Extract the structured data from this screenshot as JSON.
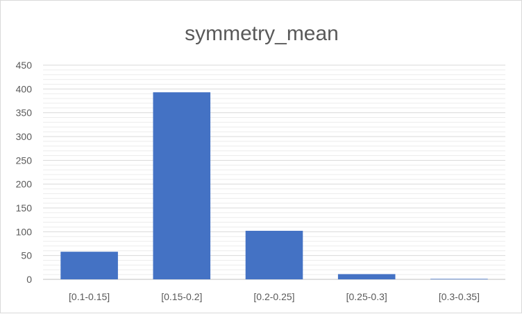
{
  "chart_data": {
    "type": "bar",
    "title": "symmetry_mean",
    "xlabel": "",
    "ylabel": "",
    "categories": [
      "[0.1-0.15]",
      "[0.15-0.2]",
      "[0.2-0.25]",
      "[0.25-0.3]",
      "[0.3-0.35]"
    ],
    "values": [
      58,
      393,
      102,
      11,
      1
    ],
    "ylim": [
      0,
      450
    ],
    "yticks": [
      0,
      50,
      100,
      150,
      200,
      250,
      300,
      350,
      400,
      450
    ],
    "grid": true,
    "legend": "none",
    "colors": {
      "bar": "#4472c4",
      "major_grid": "#d9d9d9",
      "minor_grid": "#ececec",
      "text": "#595959"
    }
  }
}
